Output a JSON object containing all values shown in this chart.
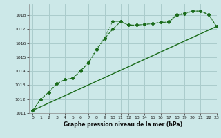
{
  "title": "Graphe pression niveau de la mer (hPa)",
  "bg_color": "#cce8e8",
  "grid_color": "#aacccc",
  "line_color": "#1a6b1a",
  "xlim": [
    -0.5,
    23
  ],
  "ylim": [
    1011,
    1018.8
  ],
  "xticks": [
    0,
    1,
    2,
    3,
    4,
    5,
    6,
    7,
    8,
    9,
    10,
    11,
    12,
    13,
    14,
    15,
    16,
    17,
    18,
    19,
    20,
    21,
    22,
    23
  ],
  "yticks": [
    1011,
    1012,
    1013,
    1014,
    1015,
    1016,
    1017,
    1018
  ],
  "series1_x": [
    0,
    1,
    2,
    3,
    4,
    5,
    6,
    7,
    8,
    9,
    10,
    11,
    12,
    13,
    14,
    15,
    16,
    17,
    18,
    19,
    20,
    21,
    22,
    23
  ],
  "series1_y": [
    1011.2,
    1012.0,
    1012.5,
    1013.1,
    1013.4,
    1013.5,
    1014.0,
    1014.65,
    1015.6,
    1016.4,
    1017.55,
    1017.55,
    1017.3,
    1017.3,
    1017.35,
    1017.4,
    1017.5,
    1017.55,
    1018.05,
    1018.15,
    1018.3,
    1018.3,
    1018.05,
    1017.2
  ],
  "series2_x": [
    0,
    1,
    2,
    3,
    4,
    5,
    6,
    7,
    8,
    9,
    10,
    11,
    12,
    13,
    14,
    15,
    16,
    17,
    18,
    19,
    20,
    21,
    22,
    23
  ],
  "series2_y": [
    1011.2,
    1012.0,
    1012.5,
    1013.1,
    1013.4,
    1013.5,
    1014.05,
    1014.6,
    1015.55,
    1016.35,
    1017.0,
    1017.55,
    1017.3,
    1017.3,
    1017.35,
    1017.4,
    1017.5,
    1017.5,
    1018.0,
    1018.1,
    1018.3,
    1018.3,
    1018.05,
    1017.2
  ],
  "series3_x": [
    0,
    23
  ],
  "series3_y": [
    1011.2,
    1017.2
  ]
}
